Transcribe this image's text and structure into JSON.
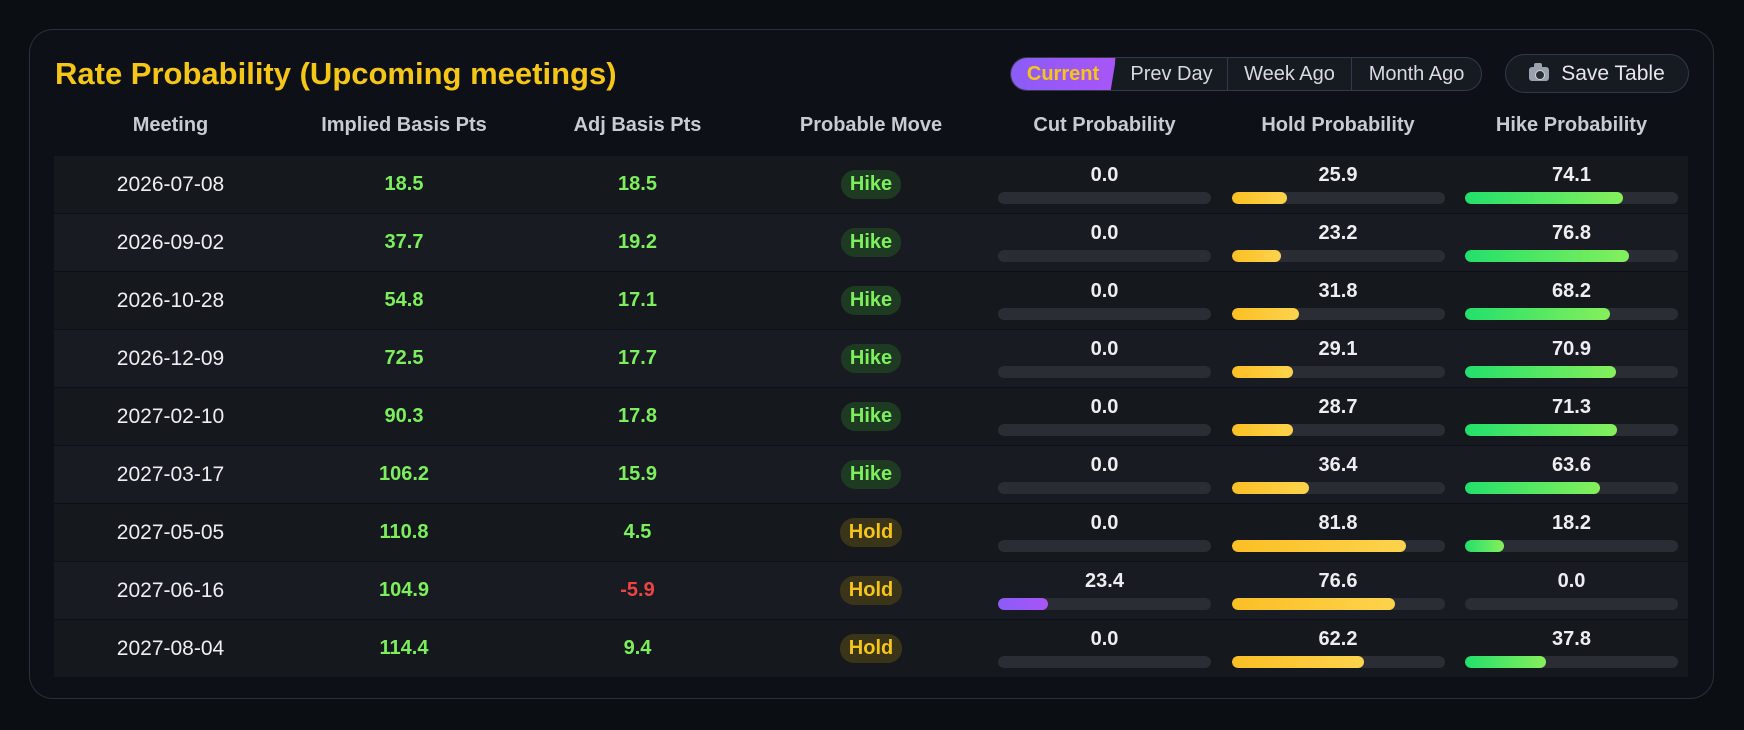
{
  "title": "Rate Probability (Upcoming meetings)",
  "tabs": [
    {
      "label": "Current",
      "active": true
    },
    {
      "label": "Prev Day",
      "active": false
    },
    {
      "label": "Week Ago",
      "active": false
    },
    {
      "label": "Month Ago",
      "active": false
    }
  ],
  "save_button": {
    "label": "Save Table",
    "icon": "camera-icon"
  },
  "columns": [
    "Meeting",
    "Implied Basis Pts",
    "Adj Basis Pts",
    "Probable Move",
    "Cut Probability",
    "Hold Probability",
    "Hike Probability"
  ],
  "colors": {
    "accent": "#f5c518",
    "positive": "#7cf05c",
    "negative": "#ef4444",
    "cut": "#8b5cf6",
    "hold": "#fbbf24",
    "hike": "#22e06b"
  },
  "rows": [
    {
      "meeting": "2026-07-08",
      "implied": "18.5",
      "adj": "18.5",
      "move": "Hike",
      "cut": "0.0",
      "hold": "25.9",
      "hike": "74.1"
    },
    {
      "meeting": "2026-09-02",
      "implied": "37.7",
      "adj": "19.2",
      "move": "Hike",
      "cut": "0.0",
      "hold": "23.2",
      "hike": "76.8"
    },
    {
      "meeting": "2026-10-28",
      "implied": "54.8",
      "adj": "17.1",
      "move": "Hike",
      "cut": "0.0",
      "hold": "31.8",
      "hike": "68.2"
    },
    {
      "meeting": "2026-12-09",
      "implied": "72.5",
      "adj": "17.7",
      "move": "Hike",
      "cut": "0.0",
      "hold": "29.1",
      "hike": "70.9"
    },
    {
      "meeting": "2027-02-10",
      "implied": "90.3",
      "adj": "17.8",
      "move": "Hike",
      "cut": "0.0",
      "hold": "28.7",
      "hike": "71.3"
    },
    {
      "meeting": "2027-03-17",
      "implied": "106.2",
      "adj": "15.9",
      "move": "Hike",
      "cut": "0.0",
      "hold": "36.4",
      "hike": "63.6"
    },
    {
      "meeting": "2027-05-05",
      "implied": "110.8",
      "adj": "4.5",
      "move": "Hold",
      "cut": "0.0",
      "hold": "81.8",
      "hike": "18.2"
    },
    {
      "meeting": "2027-06-16",
      "implied": "104.9",
      "adj": "-5.9",
      "move": "Hold",
      "cut": "23.4",
      "hold": "76.6",
      "hike": "0.0"
    },
    {
      "meeting": "2027-08-04",
      "implied": "114.4",
      "adj": "9.4",
      "move": "Hold",
      "cut": "0.0",
      "hold": "62.2",
      "hike": "37.8"
    }
  ]
}
